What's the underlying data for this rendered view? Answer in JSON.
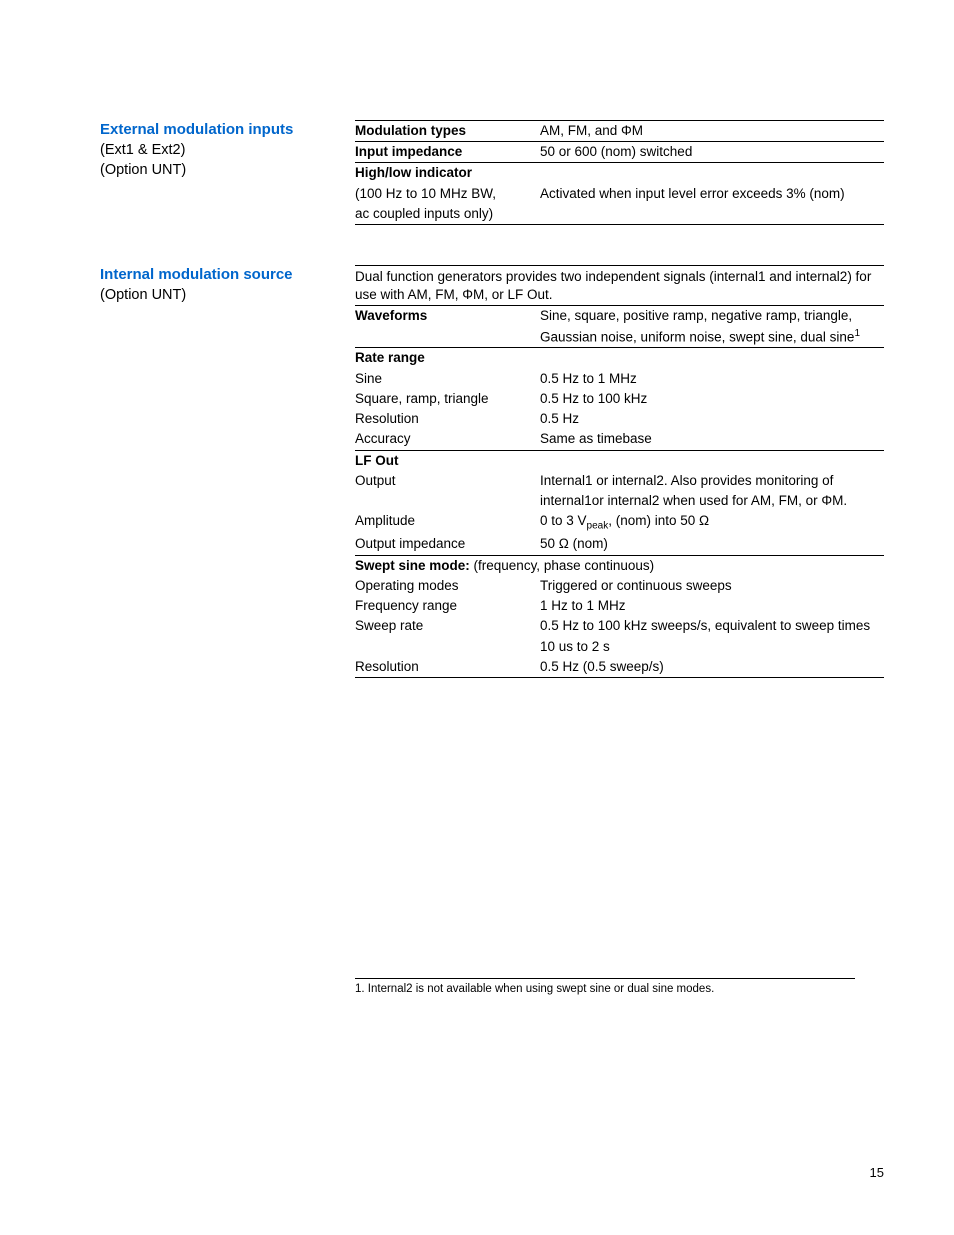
{
  "section1": {
    "title": "External modulation inputs",
    "sub1": "(Ext1 & Ext2)",
    "sub2": "(Option UNT)",
    "rows": {
      "modTypesLabel": "Modulation types",
      "modTypesVal": "AM, FM, and ΦM",
      "inputImpLabel": "Input impedance",
      "inputImpVal": "50 or 600    (nom) switched",
      "highLowLabel": "High/low indicator",
      "highLowSub1": "(100 Hz to 10 MHz BW,",
      "highLowSub2": "ac coupled inputs only)",
      "highLowVal": "Activated when input level error exceeds 3% (nom)"
    }
  },
  "section2": {
    "title": "Internal modulation source",
    "sub1": "(Option UNT)",
    "intro": "Dual function generators provides two independent signals (internal1 and internal2) for use with AM, FM, ΦM, or LF Out.",
    "rows": {
      "waveformsLabel": "Waveforms",
      "waveformsVal1": "Sine, square, positive ramp, negative ramp, triangle,",
      "waveformsVal2a": "Gaussian noise, uniform noise, swept sine, dual sine",
      "waveformsVal2sup": "1",
      "rateRangeLabel": "Rate range",
      "sineLabel": "Sine",
      "sineVal": "0.5 Hz to 1 MHz",
      "sqrLabel": "Square, ramp, triangle",
      "sqrVal": "0.5 Hz to 100 kHz",
      "resLabel": "Resolution",
      "resVal": "0.5 Hz",
      "accLabel": "Accuracy",
      "accVal": "Same as timebase",
      "lfOutLabel": "LF Out",
      "outputLabel": "Output",
      "outputVal1": "Internal1 or internal2. Also provides monitoring of",
      "outputVal2": "internal1or internal2 when used for AM, FM, or ΦM.",
      "ampLabel": "Amplitude",
      "ampValA": "0 to 3 V",
      "ampValSub": "peak",
      "ampValB": ", (nom) into 50 Ω",
      "outImpLabel": "Output impedance",
      "outImpVal": "50 Ω (nom)",
      "sweptLabelA": "Swept sine mode:",
      "sweptLabelB": " (frequency, phase continuous)",
      "opModesLabel": "Operating modes",
      "opModesVal": "Triggered or continuous sweeps",
      "freqRangeLabel": "Frequency range",
      "freqRangeVal": "1 Hz to 1 MHz",
      "sweepRateLabel": "Sweep rate",
      "sweepRateVal1": "0.5 Hz to 100 kHz sweeps/s, equivalent to sweep times",
      "sweepRateVal2": "10 us to 2 s",
      "res2Label": "Resolution",
      "res2Val": "0.5 Hz (0.5 sweep/s)"
    }
  },
  "footnote": "1. Internal2 is not available when using swept sine or dual sine modes.",
  "pageNum": "15"
}
